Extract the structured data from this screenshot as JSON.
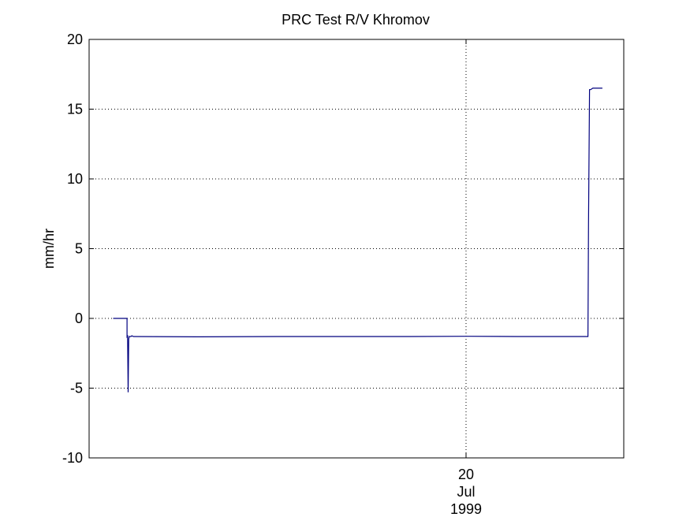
{
  "chart_data": {
    "type": "line",
    "title": "PRC Test R/V Khromov",
    "ylabel": "mm/hr",
    "xlabel": "",
    "xlim": [
      0,
      1
    ],
    "ylim": [
      -10,
      20
    ],
    "y_ticks": [
      20,
      15,
      10,
      5,
      0,
      -5,
      -10
    ],
    "y_tick_labels": [
      "20",
      "15",
      "10",
      "5",
      "0",
      "-5",
      "-10"
    ],
    "x_ticks": [
      {
        "x": 0.705,
        "lines": [
          "20",
          "Jul",
          "1999"
        ]
      }
    ],
    "grid": true,
    "series": [
      {
        "color": "#00007f",
        "x": [
          0.045,
          0.071,
          0.071,
          0.072,
          0.073,
          0.074,
          0.075,
          0.076,
          0.078,
          0.08,
          0.083,
          0.2,
          0.35,
          0.5,
          0.6,
          0.705,
          0.8,
          0.9,
          0.933,
          0.934,
          0.936,
          0.938,
          0.942,
          0.95,
          0.955,
          0.96
        ],
        "y": [
          0.0,
          0.0,
          -1.4,
          -1.2,
          -5.3,
          -1.5,
          -1.3,
          -1.3,
          -1.3,
          -1.25,
          -1.3,
          -1.32,
          -1.3,
          -1.3,
          -1.3,
          -1.28,
          -1.3,
          -1.3,
          -1.3,
          6.7,
          16.4,
          16.4,
          16.5,
          16.5,
          16.5,
          16.5
        ]
      }
    ]
  }
}
